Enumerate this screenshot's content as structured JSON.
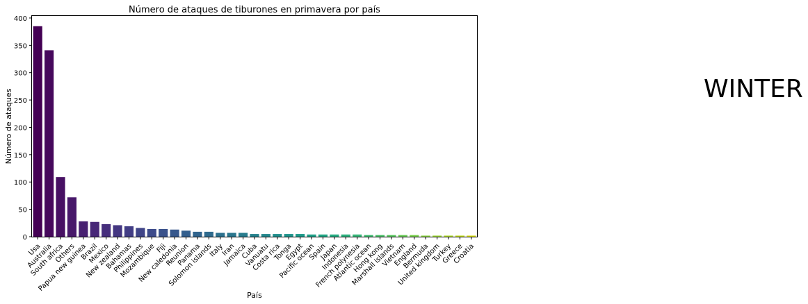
{
  "side_label": "WINTER",
  "chart_data": {
    "type": "bar",
    "title": "Número de ataques de tiburones en primavera por país",
    "xlabel": "País",
    "ylabel": "Número de ataques",
    "ylim": [
      0,
      405
    ],
    "yticks": [
      0,
      50,
      100,
      150,
      200,
      250,
      300,
      350,
      400
    ],
    "grid": false,
    "colormap": "viridis",
    "categories": [
      "Usa",
      "Australia",
      "South africa",
      "Others",
      "Papua new guinea",
      "Brazil",
      "Mexico",
      "New zealand",
      "Bahamas",
      "Philippines",
      "Mozambique",
      "Fiji",
      "New caledonia",
      "Reunion",
      "Panama",
      "Solomon islands",
      "Italy",
      "Iran",
      "Jamaica",
      "Cuba",
      "Vanuatu",
      "Costa rica",
      "Tonga",
      "Egypt",
      "Pacific ocean",
      "Spain",
      "Japan",
      "Indonesia",
      "French polynesia",
      "Atlantic ocean",
      "Hong kong",
      "Marshall islands",
      "Vietnam",
      "England",
      "Bermuda",
      "United kingdom",
      "Turkey",
      "Greece",
      "Croatia"
    ],
    "values": [
      385,
      341,
      109,
      72,
      28,
      27,
      23,
      21,
      19,
      16,
      14,
      14,
      13,
      11,
      9,
      9,
      7,
      7,
      7,
      5,
      5,
      5,
      5,
      5,
      4,
      4,
      4,
      4,
      4,
      3,
      3,
      3,
      3,
      3,
      2,
      2,
      2,
      2,
      2
    ],
    "colors": [
      "#440154",
      "#46085c",
      "#471063",
      "#48186a",
      "#482071",
      "#472777",
      "#462e7c",
      "#443681",
      "#423d85",
      "#404588",
      "#3d4b8a",
      "#3a528b",
      "#37588c",
      "#345f8d",
      "#32658e",
      "#2f6b8e",
      "#2d718e",
      "#2b778e",
      "#297d8e",
      "#27838e",
      "#25898e",
      "#238f8d",
      "#21948c",
      "#1f9a8a",
      "#1fa088",
      "#21a685",
      "#25ac82",
      "#2db17e",
      "#37b779",
      "#42bc73",
      "#4fc26b",
      "#5dc863",
      "#6ccd5a",
      "#7dd250",
      "#8ed645",
      "#a0da39",
      "#b2dd2d",
      "#c5e021",
      "#dde318"
    ]
  }
}
